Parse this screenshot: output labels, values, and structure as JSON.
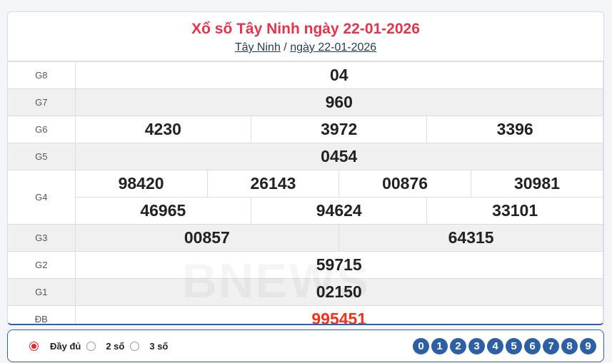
{
  "header": {
    "title": "Xổ số Tây Ninh ngày 22-01-2026",
    "breadcrumb": [
      {
        "label": "Tây Ninh"
      },
      {
        "label": "ngày 22-01-2026"
      }
    ],
    "separator": "/"
  },
  "prizes": [
    {
      "label": "G8",
      "rows": [
        [
          "04"
        ]
      ]
    },
    {
      "label": "G7",
      "rows": [
        [
          "960"
        ]
      ]
    },
    {
      "label": "G6",
      "rows": [
        [
          "4230",
          "3972",
          "3396"
        ]
      ]
    },
    {
      "label": "G5",
      "rows": [
        [
          "0454"
        ]
      ]
    },
    {
      "label": "G4",
      "rows": [
        [
          "98420",
          "26143",
          "00876",
          "30981"
        ],
        [
          "46965",
          "94624",
          "33101"
        ]
      ]
    },
    {
      "label": "G3",
      "rows": [
        [
          "00857",
          "64315"
        ]
      ]
    },
    {
      "label": "G2",
      "rows": [
        [
          "59715"
        ]
      ]
    },
    {
      "label": "G1",
      "rows": [
        [
          "02150"
        ]
      ]
    },
    {
      "label": "ĐB",
      "rows": [
        [
          "995451"
        ]
      ]
    }
  ],
  "watermark": "BNEWS",
  "filter": {
    "options": [
      {
        "label": "Đầy đủ",
        "selected": true
      },
      {
        "label": "2 số",
        "selected": false
      },
      {
        "label": "3 số",
        "selected": false
      }
    ]
  },
  "digits": [
    "0",
    "1",
    "2",
    "3",
    "4",
    "5",
    "6",
    "7",
    "8",
    "9"
  ],
  "colors": {
    "title": "#e8334a",
    "special": "#f0321e",
    "accent": "#2c5fa6"
  }
}
